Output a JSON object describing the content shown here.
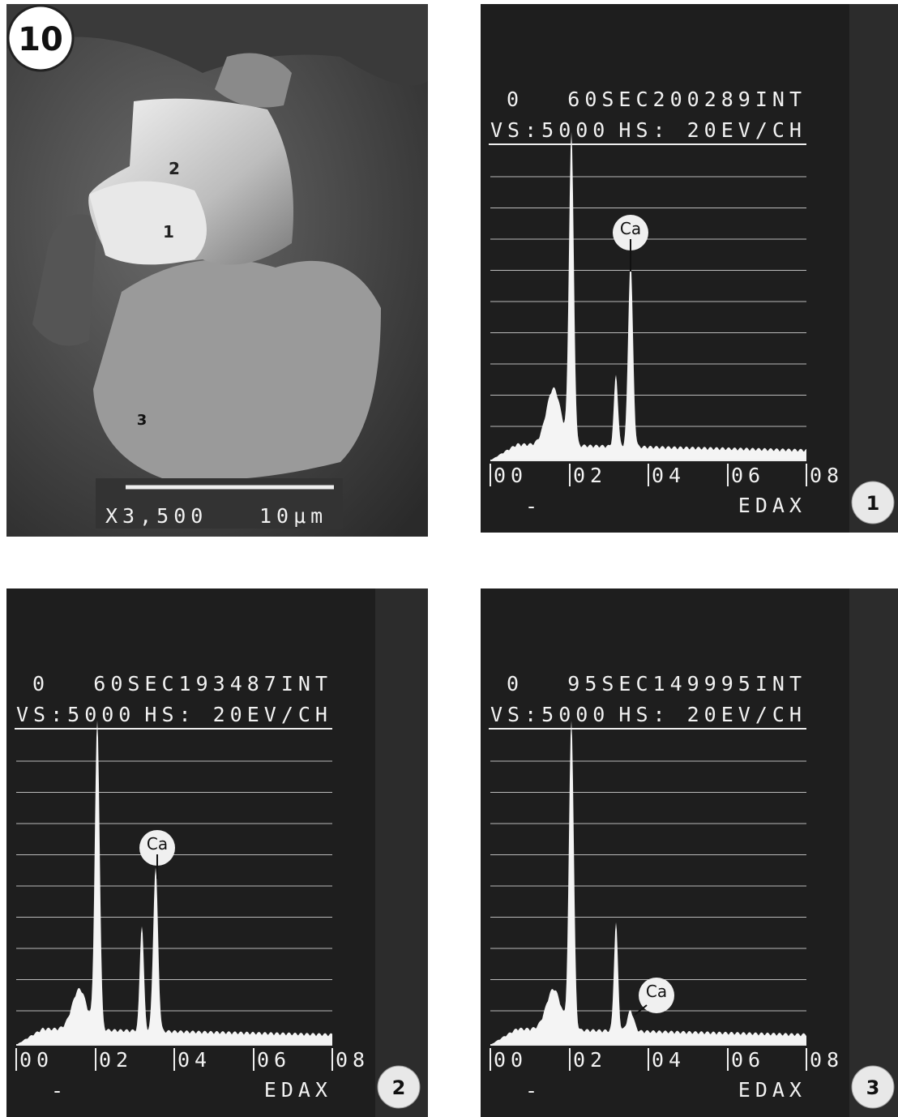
{
  "figure_number": "10",
  "sem": {
    "points": [
      "2",
      "1",
      "3"
    ],
    "magnification": "X3,500",
    "scale": "10μm"
  },
  "spectra": [
    {
      "live_time": "0",
      "header": "60SEC200289INT",
      "vs": "VS:5000",
      "hs": "HS: 20EV/CH",
      "element": "Ca",
      "x_labels": [
        "00",
        "02",
        "04",
        "06",
        "08"
      ],
      "minus": "-",
      "brand": "EDAX",
      "panel": "1"
    },
    {
      "live_time": "0",
      "header": "60SEC193487INT",
      "vs": "VS:5000",
      "hs": "HS: 20EV/CH",
      "element": "Ca",
      "x_labels": [
        "00",
        "02",
        "04",
        "06",
        "08"
      ],
      "minus": "-",
      "brand": "EDAX",
      "panel": "2"
    },
    {
      "live_time": "0",
      "header": "95SEC149995INT",
      "vs": "VS:5000",
      "hs": "HS: 20EV/CH",
      "element": "Ca",
      "x_labels": [
        "00",
        "02",
        "04",
        "06",
        "08"
      ],
      "minus": "-",
      "brand": "EDAX",
      "panel": "3"
    }
  ]
}
